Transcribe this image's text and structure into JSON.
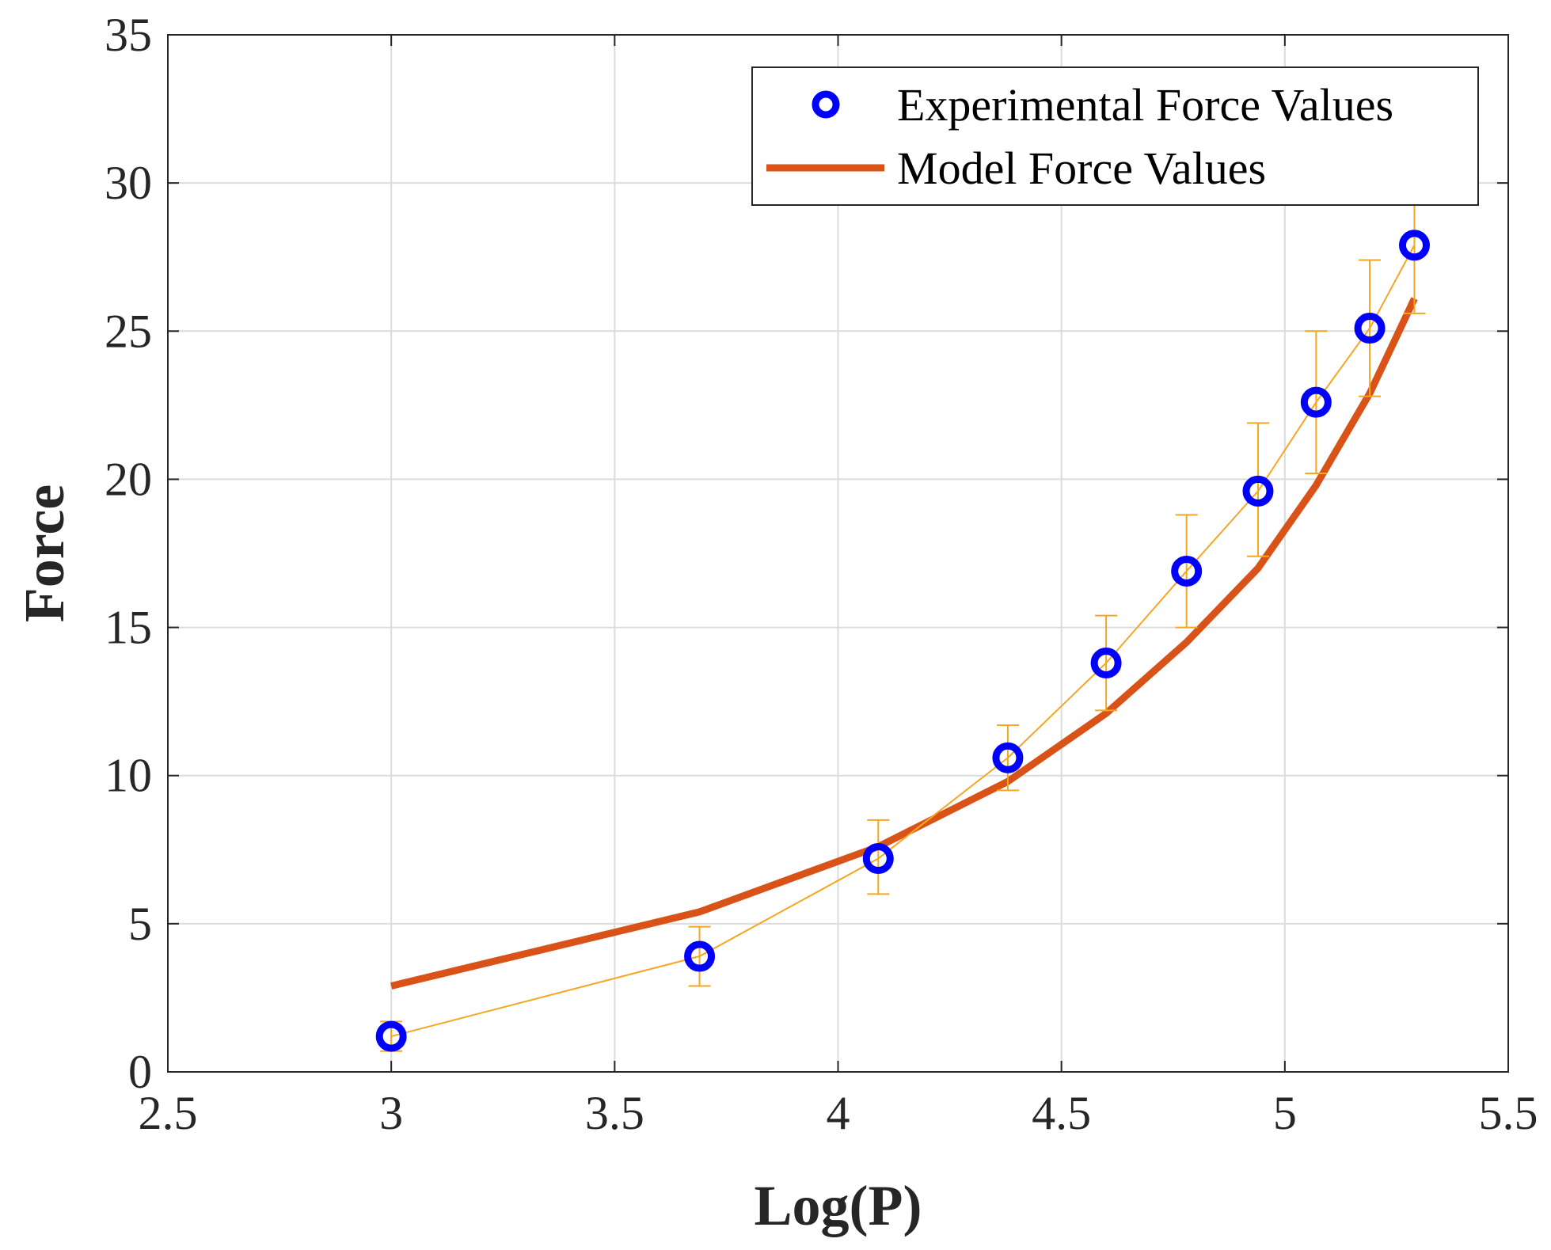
{
  "chart_data": {
    "type": "line",
    "title": "",
    "xlabel": "Log(P)",
    "ylabel": "Force",
    "xlim": [
      2.5,
      5.5
    ],
    "ylim": [
      0,
      35
    ],
    "grid": true,
    "legend_position": "top-right",
    "xticks": [
      2.5,
      3,
      3.5,
      4,
      4.5,
      5,
      5.5
    ],
    "xtick_labels": [
      "2.5",
      "3",
      "3.5",
      "4",
      "4.5",
      "5",
      "5.5"
    ],
    "yticks": [
      0,
      5,
      10,
      15,
      20,
      25,
      30,
      35
    ],
    "ytick_labels": [
      "0",
      "5",
      "10",
      "15",
      "20",
      "25",
      "30",
      "35"
    ],
    "series": [
      {
        "name": "Experimental Force Values",
        "kind": "scatter-errorbar",
        "marker_color": "#0000ff",
        "errorbar_color": "#f5a623",
        "x": [
          3.0,
          3.69,
          4.09,
          4.38,
          4.6,
          4.78,
          4.94,
          5.07,
          5.19,
          5.29
        ],
        "y": [
          1.2,
          3.9,
          7.2,
          10.6,
          13.8,
          16.9,
          19.6,
          22.6,
          25.1,
          27.9
        ],
        "err_low": [
          0.5,
          1.0,
          1.2,
          1.1,
          1.6,
          1.9,
          2.2,
          2.4,
          2.3,
          2.3
        ],
        "err_high": [
          0.5,
          1.0,
          1.3,
          1.1,
          1.6,
          1.9,
          2.3,
          2.4,
          2.3,
          2.3
        ]
      },
      {
        "name": "Model Force Values",
        "kind": "line",
        "color": "#d95319",
        "x": [
          3.0,
          3.69,
          4.09,
          4.38,
          4.6,
          4.78,
          4.94,
          5.07,
          5.19,
          5.29
        ],
        "y": [
          2.9,
          5.4,
          7.6,
          9.8,
          12.1,
          14.5,
          17.0,
          19.8,
          22.9,
          26.1
        ]
      }
    ]
  }
}
